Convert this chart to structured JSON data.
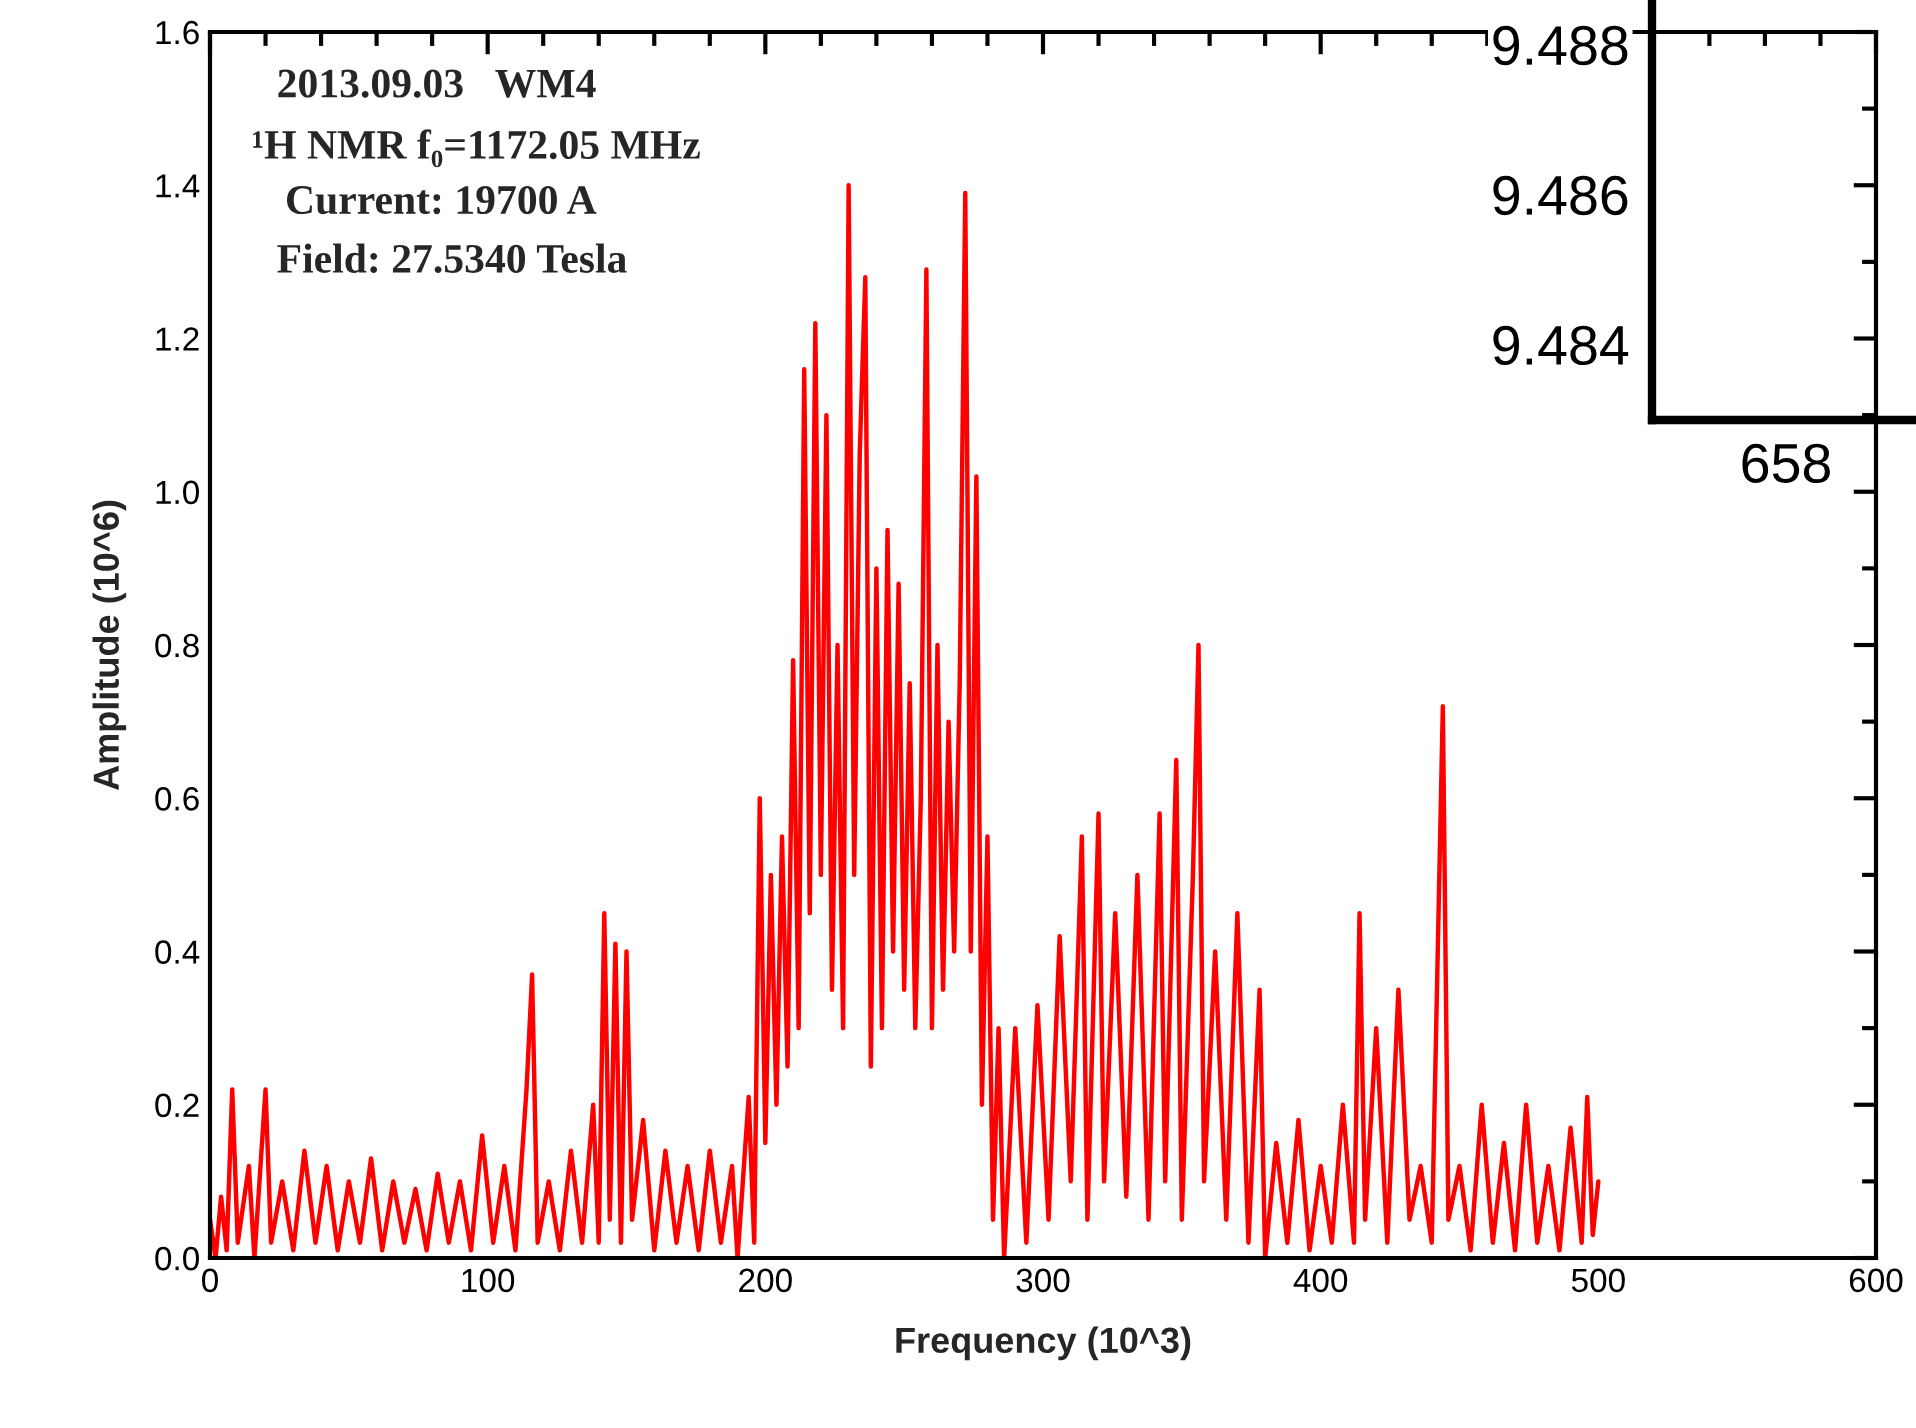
{
  "chart_data": [
    {
      "type": "line",
      "xlabel": "Frequency (10^3)",
      "ylabel": "Amplitude (10^6)",
      "annotations": [
        "2013.09.03   WM4",
        "¹H NMR f₀=1172.05 MHz",
        "Current: 19700 A",
        "Field: 27.5340 Tesla"
      ],
      "xlim": [
        0,
        600
      ],
      "ylim": [
        0,
        1.6
      ],
      "xticks": [
        0,
        {
          "value": 20,
          "label": null
        },
        {
          "value": 40,
          "label": null
        },
        {
          "value": 60,
          "label": null
        },
        {
          "value": 80,
          "label": null
        },
        100,
        {
          "value": 120,
          "label": null
        },
        {
          "value": 140,
          "label": null
        },
        {
          "value": 160,
          "label": null
        },
        {
          "value": 180,
          "label": null
        },
        200,
        {
          "value": 220,
          "label": null
        },
        {
          "value": 240,
          "label": null
        },
        {
          "value": 260,
          "label": null
        },
        {
          "value": 280,
          "label": null
        },
        300,
        {
          "value": 320,
          "label": null
        },
        {
          "value": 340,
          "label": null
        },
        {
          "value": 360,
          "label": null
        },
        {
          "value": 380,
          "label": null
        },
        400,
        {
          "value": 420,
          "label": null
        },
        {
          "value": 440,
          "label": null
        },
        {
          "value": 460,
          "label": null
        },
        {
          "value": 480,
          "label": null
        },
        500,
        {
          "value": 520,
          "label": null
        },
        {
          "value": 540,
          "label": null
        },
        {
          "value": 560,
          "label": null
        },
        {
          "value": 580,
          "label": null
        },
        600
      ],
      "yticks": [
        {
          "value": 0,
          "label": "0.0"
        },
        {
          "value": 0.1,
          "label": null
        },
        0.2,
        {
          "value": 0.3,
          "label": null
        },
        0.4,
        {
          "value": 0.5,
          "label": null
        },
        0.6,
        {
          "value": 0.7,
          "label": null
        },
        0.8,
        {
          "value": 0.9,
          "label": null
        },
        {
          "value": 1.0,
          "label": "1.0"
        },
        {
          "value": 1.1,
          "label": null
        },
        1.2,
        {
          "value": 1.3,
          "label": null
        },
        1.4,
        {
          "value": 1.5,
          "label": null
        },
        1.6
      ],
      "grid": false,
      "legend": false,
      "series": [
        {
          "color": "#ff0000",
          "x": [
            0,
            2,
            4,
            6,
            8,
            10,
            14,
            16,
            20,
            22,
            26,
            30,
            34,
            38,
            42,
            46,
            50,
            54,
            58,
            62,
            66,
            70,
            74,
            78,
            82,
            86,
            90,
            94,
            98,
            102,
            106,
            110,
            114,
            116,
            118,
            122,
            126,
            130,
            134,
            138,
            140,
            142,
            144,
            146,
            148,
            150,
            152,
            156,
            160,
            164,
            168,
            172,
            176,
            180,
            184,
            188,
            190,
            194,
            196,
            198,
            200,
            202,
            204,
            206,
            208,
            210,
            212,
            214,
            216,
            218,
            220,
            222,
            224,
            226,
            228,
            230,
            232,
            234,
            236,
            238,
            240,
            242,
            244,
            246,
            248,
            250,
            252,
            254,
            256,
            258,
            260,
            262,
            264,
            266,
            268,
            270,
            272,
            274,
            276,
            278,
            280,
            282,
            284,
            286,
            290,
            294,
            298,
            302,
            306,
            310,
            314,
            316,
            320,
            322,
            326,
            330,
            334,
            338,
            342,
            344,
            348,
            350,
            354,
            356,
            358,
            362,
            366,
            370,
            374,
            378,
            380,
            384,
            388,
            392,
            396,
            400,
            404,
            408,
            412,
            414,
            416,
            420,
            424,
            428,
            432,
            436,
            440,
            444,
            446,
            450,
            454,
            458,
            462,
            466,
            470,
            474,
            478,
            482,
            486,
            490,
            494,
            496,
            498,
            500
          ],
          "values": [
            0.05,
            0.0,
            0.08,
            0.01,
            0.22,
            0.02,
            0.12,
            0.0,
            0.22,
            0.02,
            0.1,
            0.01,
            0.14,
            0.02,
            0.12,
            0.01,
            0.1,
            0.02,
            0.13,
            0.01,
            0.1,
            0.02,
            0.09,
            0.01,
            0.11,
            0.02,
            0.1,
            0.01,
            0.16,
            0.02,
            0.12,
            0.01,
            0.22,
            0.37,
            0.02,
            0.1,
            0.01,
            0.14,
            0.02,
            0.2,
            0.02,
            0.45,
            0.05,
            0.41,
            0.02,
            0.4,
            0.05,
            0.18,
            0.01,
            0.14,
            0.02,
            0.12,
            0.01,
            0.14,
            0.02,
            0.12,
            0.0,
            0.21,
            0.02,
            0.6,
            0.15,
            0.5,
            0.2,
            0.55,
            0.25,
            0.78,
            0.3,
            1.16,
            0.45,
            1.22,
            0.5,
            1.1,
            0.35,
            0.8,
            0.3,
            1.4,
            0.5,
            1.05,
            1.28,
            0.25,
            0.9,
            0.3,
            0.95,
            0.4,
            0.88,
            0.35,
            0.75,
            0.3,
            0.6,
            1.29,
            0.3,
            0.8,
            0.35,
            0.7,
            0.4,
            0.75,
            1.39,
            0.4,
            1.02,
            0.2,
            0.55,
            0.05,
            0.3,
            0.0,
            0.3,
            0.02,
            0.33,
            0.05,
            0.42,
            0.1,
            0.55,
            0.05,
            0.58,
            0.1,
            0.45,
            0.08,
            0.5,
            0.05,
            0.58,
            0.1,
            0.65,
            0.05,
            0.5,
            0.8,
            0.1,
            0.4,
            0.05,
            0.45,
            0.02,
            0.35,
            0.0,
            0.15,
            0.02,
            0.18,
            0.01,
            0.12,
            0.02,
            0.2,
            0.02,
            0.45,
            0.05,
            0.3,
            0.02,
            0.35,
            0.05,
            0.12,
            0.02,
            0.72,
            0.05,
            0.12,
            0.01,
            0.2,
            0.02,
            0.15,
            0.01,
            0.2,
            0.02,
            0.12,
            0.01,
            0.17,
            0.02,
            0.21,
            0.03,
            0.1
          ]
        }
      ]
    },
    {
      "type": "other",
      "annotations": [
        "9.488",
        "9.486",
        "9.484",
        "658"
      ]
    }
  ]
}
